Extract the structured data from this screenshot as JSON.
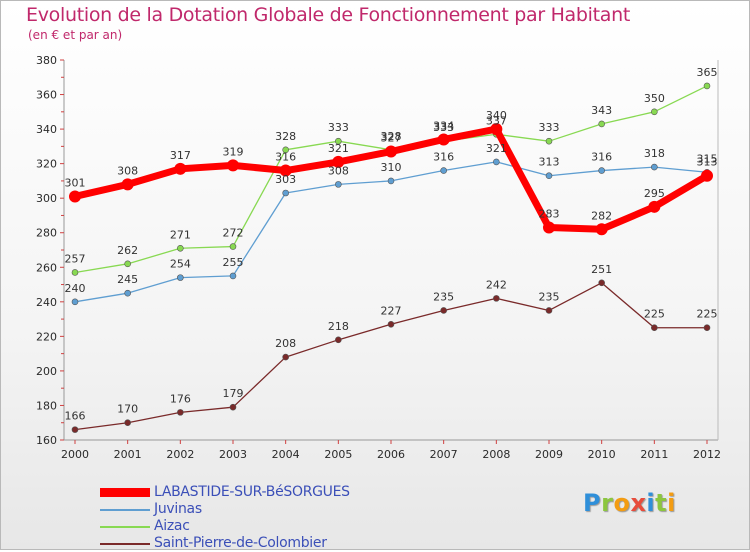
{
  "chart_data": {
    "type": "line",
    "title": "Evolution de la Dotation Globale de Fonctionnement par Habitant",
    "subtitle": "(en € et par an)",
    "x": [
      "2000",
      "2001",
      "2002",
      "2003",
      "2004",
      "2005",
      "2006",
      "2007",
      "2008",
      "2009",
      "2010",
      "2011",
      "2012"
    ],
    "ylim": [
      160,
      380
    ],
    "yticks": [
      160,
      180,
      200,
      220,
      240,
      260,
      280,
      300,
      320,
      340,
      360,
      380
    ],
    "grid": false,
    "legend": "bottom-left",
    "series": [
      {
        "name": "LABASTIDE-SUR-BéSORGUES",
        "color": "#ff0000",
        "values": [
          301,
          308,
          317,
          319,
          316,
          321,
          327,
          334,
          340,
          283,
          282,
          295,
          313
        ]
      },
      {
        "name": "Juvinas",
        "color": "#5f9ed1",
        "values": [
          240,
          245,
          254,
          255,
          303,
          308,
          310,
          316,
          321,
          313,
          316,
          318,
          315
        ]
      },
      {
        "name": "Aizac",
        "color": "#88d952",
        "values": [
          257,
          262,
          271,
          272,
          328,
          333,
          328,
          333,
          337,
          333,
          343,
          350,
          365
        ]
      },
      {
        "name": "Saint-Pierre-de-Colombier",
        "color": "#7a2a2a",
        "values": [
          166,
          170,
          176,
          179,
          208,
          218,
          227,
          235,
          242,
          235,
          251,
          225,
          225
        ]
      }
    ]
  },
  "logo": {
    "letters": [
      "P",
      "r",
      "o",
      "x",
      "i",
      "t",
      "i"
    ],
    "colors": [
      "#2f8fd9",
      "#8cc63f",
      "#f39c12",
      "#e74c3c",
      "#2f8fd9",
      "#8cc63f",
      "#f39c12"
    ]
  }
}
